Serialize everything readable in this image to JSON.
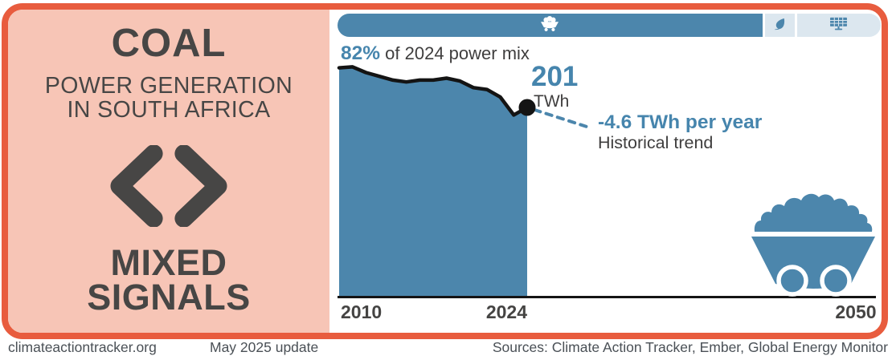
{
  "panel": {
    "title": "COAL",
    "subtitle_line1": "POWER GENERATION",
    "subtitle_line2": "IN SOUTH AFRICA",
    "verdict_line1": "MIXED",
    "verdict_line2": "SIGNALS",
    "verdict_icon": "mixed-signals-chevrons-icon"
  },
  "colors": {
    "accent_orange": "#E85C3E",
    "panel_pink": "#F7C5B6",
    "steel_blue": "#4C86AC",
    "blue_text": "#4685AD",
    "light_segment": "#DCE7EF",
    "dark_text": "#474645",
    "line_black": "#141414"
  },
  "mix_bar": {
    "segments": [
      {
        "name": "coal",
        "share": 82,
        "icon": "coal-cart-icon"
      },
      {
        "name": "renewables",
        "share": 3.3,
        "icon": "leaf-icon"
      },
      {
        "name": "solar",
        "share": 12.7,
        "icon": "solar-panel-icon"
      }
    ]
  },
  "chart_data": {
    "type": "area",
    "title": "Coal power generation in South Africa",
    "unit": "TWh",
    "x": [
      2010,
      2011,
      2012,
      2013,
      2014,
      2015,
      2016,
      2017,
      2018,
      2019,
      2020,
      2021,
      2022,
      2023,
      2024
    ],
    "values": [
      243,
      244,
      238,
      234,
      230,
      228,
      230,
      230,
      232,
      229,
      222,
      220,
      212,
      193,
      201
    ],
    "x_ticks": [
      2010,
      2024,
      2050
    ],
    "x_range": [
      2010,
      2050
    ],
    "y_range": [
      0,
      250
    ],
    "grid": false,
    "annotations": {
      "mix_pct": "82%",
      "mix_text": " of 2024 power mix",
      "last_value": "201",
      "last_unit": "TWh",
      "last_year": 2024,
      "trend_label": "-4.6 TWh per year",
      "trend_sublabel": "Historical trend",
      "trend_slope_twh_per_year": -4.6
    }
  },
  "footer": {
    "site": "climateactiontracker.org",
    "update": "May 2025 update",
    "sources": "Sources: Climate Action Tracker, Ember, Global Energy Monitor"
  }
}
